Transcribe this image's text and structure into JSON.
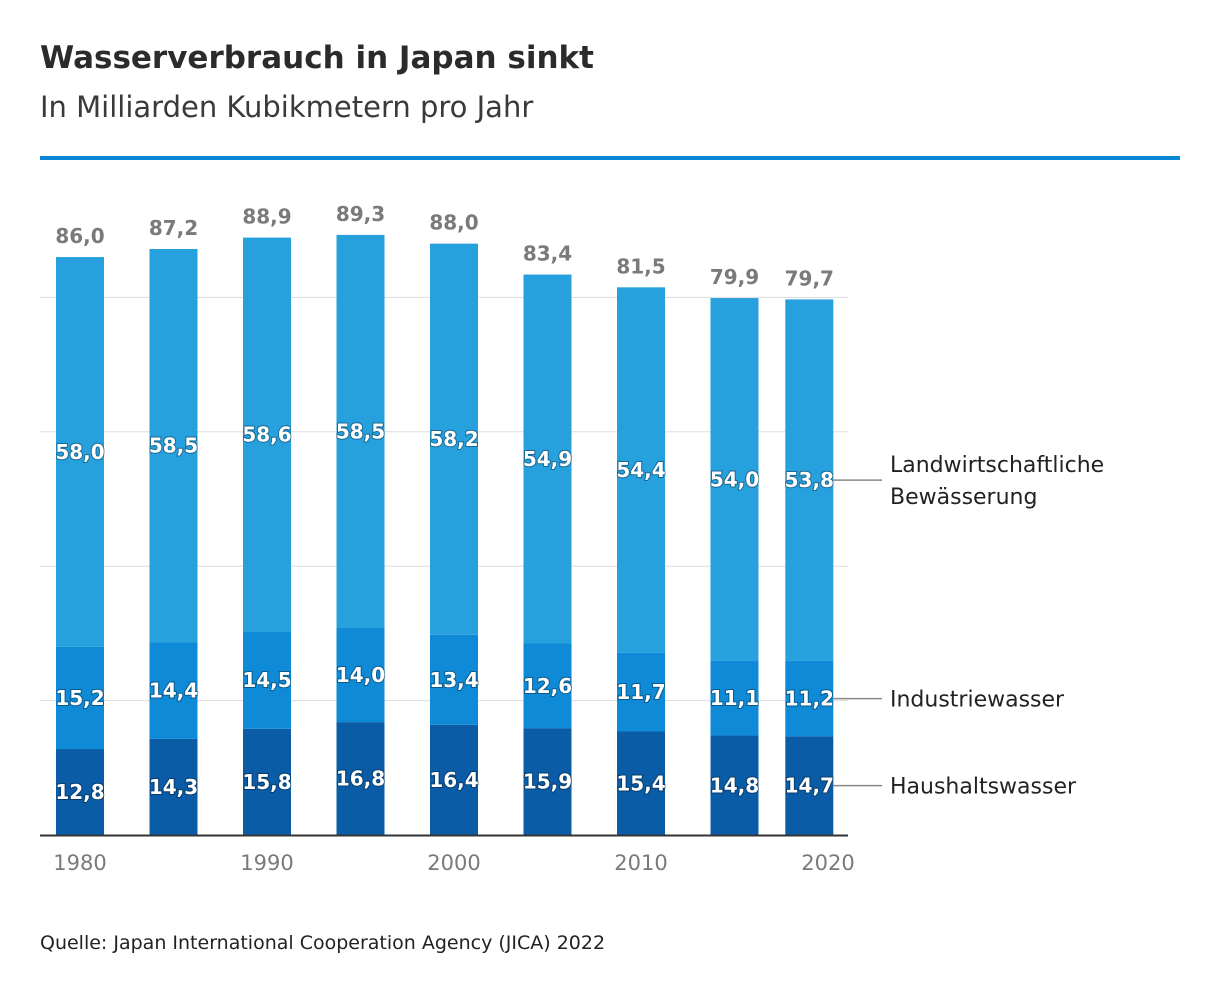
{
  "header": {
    "title": "Wasserverbrauch in Japan sinkt",
    "subtitle": "In Milliarden Kubikmetern pro Jahr"
  },
  "footer": {
    "source": "Quelle: Japan International Cooperation Agency (JICA) 2022"
  },
  "colors": {
    "rule": "#0a87d6",
    "household": "#0a5ca6",
    "industry": "#0e8ad6",
    "agriculture": "#27a0de",
    "grid": "#dddddd",
    "axis": "#333333"
  },
  "chart_data": {
    "type": "bar",
    "stacked": true,
    "title": "Wasserverbrauch in Japan sinkt",
    "subtitle": "In Milliarden Kubikmetern pro Jahr",
    "x": [
      1980,
      1985,
      1990,
      1995,
      2000,
      2005,
      2010,
      2015,
      2019
    ],
    "categories": [
      "1980",
      "1985",
      "1990",
      "1995",
      "2000",
      "2005",
      "2010",
      "2015",
      "2019"
    ],
    "xticks": [
      "1980",
      "1990",
      "2000",
      "2010",
      "2020"
    ],
    "ylim": [
      0,
      100
    ],
    "grid": true,
    "series": [
      {
        "name": "Haushaltswasser",
        "color_key": "household",
        "values": [
          12.8,
          14.3,
          15.8,
          16.8,
          16.4,
          15.9,
          15.4,
          14.8,
          14.7
        ],
        "labels": [
          "12,8",
          "14,3",
          "15,8",
          "16,8",
          "16,4",
          "15,9",
          "15,4",
          "14,8",
          "14,7"
        ]
      },
      {
        "name": "Industriewasser",
        "color_key": "industry",
        "values": [
          15.2,
          14.4,
          14.5,
          14.0,
          13.4,
          12.6,
          11.7,
          11.1,
          11.2
        ],
        "labels": [
          "15,2",
          "14,4",
          "14,5",
          "14,0",
          "13,4",
          "12,6",
          "11,7",
          "11,1",
          "11,2"
        ]
      },
      {
        "name": "Landwirtschaftliche Bewässerung",
        "color_key": "agriculture",
        "legend_lines": [
          "Landwirtschaftliche",
          "Bewässerung"
        ],
        "values": [
          58.0,
          58.5,
          58.6,
          58.5,
          58.2,
          54.9,
          54.4,
          54.0,
          53.8
        ],
        "labels": [
          "58,0",
          "58,5",
          "58,6",
          "58,5",
          "58,2",
          "54,9",
          "54,4",
          "54,0",
          "53,8"
        ]
      }
    ],
    "totals": [
      86.0,
      87.2,
      88.9,
      89.3,
      88.0,
      83.4,
      81.5,
      79.9,
      79.7
    ],
    "total_labels": [
      "86,0",
      "87,2",
      "88,9",
      "89,3",
      "88,0",
      "83,4",
      "81,5",
      "79,9",
      "79,7"
    ],
    "legend_position": "right"
  }
}
